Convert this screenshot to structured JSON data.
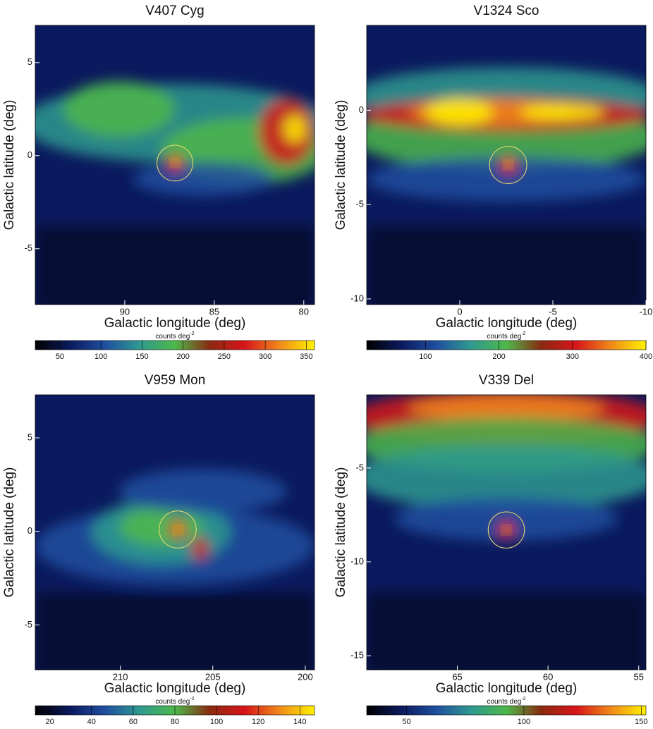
{
  "chart_data": [
    {
      "type": "heatmap",
      "title": "V407 Cyg",
      "xlabel": "Galactic longitude (deg)",
      "ylabel": "Galactic latitude (deg)",
      "xlim": [
        95,
        79.4
      ],
      "ylim": [
        -8,
        7
      ],
      "xticks": [
        90,
        85,
        80
      ],
      "yticks": [
        5,
        0,
        -5
      ],
      "marker": {
        "x": 87.2,
        "y": -0.4,
        "radius": 1.0
      },
      "colorbar": {
        "label": "counts deg",
        "label_sup": "-2",
        "lim": [
          20,
          360
        ],
        "ticks": [
          50,
          100,
          150,
          200,
          250,
          300,
          350
        ]
      },
      "colormap": [
        "#000000",
        "#0b1a5e",
        "#1f4fa0",
        "#2f9a8f",
        "#4db84a",
        "#8a2a10",
        "#d8141a",
        "#f08a1a",
        "#fff200"
      ]
    },
    {
      "type": "heatmap",
      "title": "V1324 Sco",
      "xlabel": "Galactic longitude (deg)",
      "ylabel": "Galactic latitude (deg)",
      "xlim": [
        5,
        -10
      ],
      "ylim": [
        -10.3,
        4.5
      ],
      "xticks": [
        0,
        -5,
        -10
      ],
      "yticks": [
        0,
        -5,
        -10
      ],
      "marker": {
        "x": -2.6,
        "y": -2.9,
        "radius": 1.0
      },
      "colorbar": {
        "label": "counts deg",
        "label_sup": "-2",
        "lim": [
          20,
          400
        ],
        "ticks": [
          100,
          200,
          300,
          400
        ]
      },
      "colormap": [
        "#000000",
        "#0b1a5e",
        "#1f4fa0",
        "#2f9a8f",
        "#4db84a",
        "#8a2a10",
        "#d8141a",
        "#f08a1a",
        "#fff200"
      ]
    },
    {
      "type": "heatmap",
      "title": "V959 Mon",
      "xlabel": "Galactic longitude (deg)",
      "ylabel": "Galactic latitude (deg)",
      "xlim": [
        214.6,
        199.5
      ],
      "ylim": [
        -7.4,
        7.3
      ],
      "xticks": [
        210,
        205,
        200
      ],
      "yticks": [
        5,
        0,
        -5
      ],
      "marker": {
        "x": 206.9,
        "y": 0.1,
        "radius": 1.0
      },
      "colorbar": {
        "label": "counts deg",
        "label_sup": "-2",
        "lim": [
          13,
          147
        ],
        "ticks": [
          20,
          40,
          60,
          80,
          100,
          120,
          140
        ]
      },
      "colormap": [
        "#000000",
        "#0b1a5e",
        "#1f4fa0",
        "#2f9a8f",
        "#4db84a",
        "#8a2a10",
        "#d8141a",
        "#f08a1a",
        "#fff200"
      ]
    },
    {
      "type": "heatmap",
      "title": "V339 Del",
      "xlabel": "Galactic longitude (deg)",
      "ylabel": "Galactic latitude (deg)",
      "xlim": [
        70,
        54.6
      ],
      "ylim": [
        -15.75,
        -1.1
      ],
      "xticks": [
        65,
        60,
        55
      ],
      "yticks": [
        -5,
        -10,
        -15
      ],
      "marker": {
        "x": 62.3,
        "y": -8.3,
        "radius": 1.0
      },
      "colorbar": {
        "label": "counts deg",
        "label_sup": "-2",
        "lim": [
          33,
          152
        ],
        "ticks": [
          50,
          100,
          150
        ]
      },
      "colormap": [
        "#000000",
        "#0b1a5e",
        "#1f4fa0",
        "#2f9a8f",
        "#4db84a",
        "#8a2a10",
        "#d8141a",
        "#f08a1a",
        "#fff200"
      ]
    }
  ]
}
